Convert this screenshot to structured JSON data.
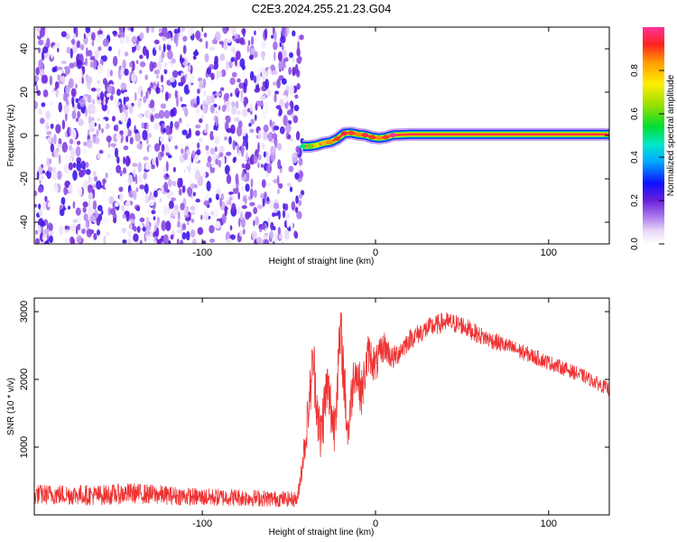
{
  "title": "C2E3.2024.255.21.23.G04",
  "chart_data": [
    {
      "type": "heatmap",
      "xlabel": "Height of straight line (km)",
      "ylabel": "Frequency (Hz)",
      "xlim": [
        -197,
        135
      ],
      "ylim": [
        -50,
        50
      ],
      "x_ticks": [
        -100,
        0,
        100
      ],
      "x_tick_labels": [
        "-100",
        "0",
        "100"
      ],
      "y_ticks": [
        -40,
        -20,
        0,
        20,
        40
      ],
      "y_tick_labels": [
        "-40",
        "-20",
        "0",
        "20",
        "40"
      ],
      "noise_region": {
        "x_range": [
          -197,
          -42
        ],
        "y_range": [
          -50,
          50
        ],
        "max_amplitude": 0.25
      },
      "peak_track": {
        "x": [
          -42,
          -38,
          -34,
          -30,
          -26,
          -22,
          -18,
          -14,
          -10,
          -6,
          -2,
          2,
          6,
          10,
          20,
          40,
          60,
          80,
          100,
          120,
          135
        ],
        "y": [
          -5,
          -5,
          -4.5,
          -3.5,
          -3,
          -1.5,
          1,
          1.2,
          0.5,
          0.2,
          -0.8,
          -1.2,
          -0.8,
          0.2,
          0.5,
          0.5,
          0.5,
          0.5,
          0.5,
          0.5,
          0.5
        ],
        "amplitude": [
          0.5,
          0.6,
          0.7,
          0.8,
          0.85,
          0.9,
          0.95,
          0.9,
          0.85,
          0.95,
          0.9,
          0.85,
          0.9,
          1.0,
          1.0,
          1.0,
          1.0,
          1.0,
          1.0,
          1.0,
          1.0
        ]
      },
      "colorbar": {
        "label": "Normalized spectral amplitude",
        "range": [
          0,
          1
        ],
        "ticks": [
          0.0,
          0.2,
          0.4,
          0.6,
          0.8
        ],
        "tick_labels": [
          "0.0",
          "0.2",
          "0.4",
          "0.6",
          "0.8"
        ]
      }
    },
    {
      "type": "line",
      "xlabel": "Height of straight line (km)",
      "ylabel": "SNR (10 * v/v)",
      "xlim": [
        -197,
        135
      ],
      "ylim": [
        0,
        3200
      ],
      "x_ticks": [
        -100,
        0,
        100
      ],
      "x_tick_labels": [
        "-100",
        "0",
        "100"
      ],
      "y_ticks": [
        1000,
        2000,
        3000
      ],
      "y_tick_labels": [
        "1000",
        "2000",
        "3000"
      ],
      "color": "#ee3333",
      "series": [
        {
          "x": [
            -197,
            -180,
            -160,
            -140,
            -120,
            -100,
            -80,
            -60,
            -45,
            -40,
            -36,
            -32,
            -28,
            -24,
            -20,
            -16,
            -12,
            -8,
            -4,
            0,
            5,
            10,
            20,
            30,
            40,
            50,
            60,
            80,
            100,
            120,
            135
          ],
          "y": [
            300,
            300,
            290,
            320,
            290,
            260,
            260,
            240,
            230,
            1200,
            2300,
            1100,
            1900,
            1300,
            2700,
            1200,
            2200,
            1800,
            2400,
            2200,
            2500,
            2300,
            2600,
            2750,
            2850,
            2800,
            2650,
            2450,
            2250,
            2050,
            1850
          ],
          "noise": [
            150,
            150,
            150,
            150,
            140,
            130,
            130,
            120,
            110,
            300,
            450,
            450,
            450,
            450,
            450,
            400,
            350,
            350,
            300,
            280,
            220,
            180,
            150,
            150,
            150,
            140,
            130,
            120,
            110,
            100,
            100
          ]
        }
      ]
    }
  ]
}
